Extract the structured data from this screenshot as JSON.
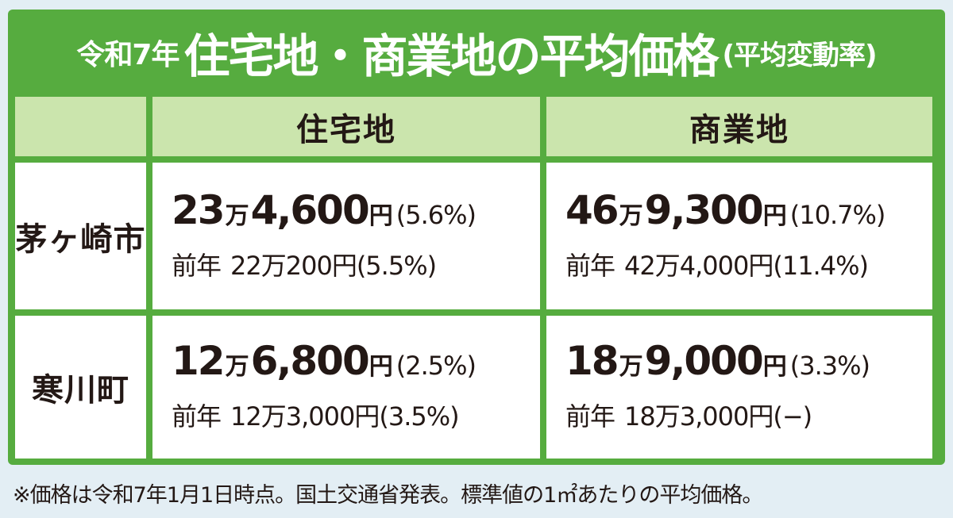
{
  "title": {
    "prefix": "令和7年",
    "main": "住宅地・商業地の平均価格",
    "suffix": "(平均変動率)"
  },
  "table": {
    "columns": [
      "住宅地",
      "商業地"
    ],
    "rows": [
      {
        "city": "茅ヶ崎市",
        "residential": {
          "big1": "23",
          "man": "万",
          "big2": "4,600",
          "yen": "円",
          "pct": "(5.6%)",
          "prev_label": "前年",
          "prev_value": "22万200円(5.5%)"
        },
        "commercial": {
          "big1": "46",
          "man": "万",
          "big2": "9,300",
          "yen": "円",
          "pct": "(10.7%)",
          "prev_label": "前年",
          "prev_value": "42万4,000円(11.4%)"
        }
      },
      {
        "city": "寒川町",
        "residential": {
          "big1": "12",
          "man": "万",
          "big2": "6,800",
          "yen": "円",
          "pct": "(2.5%)",
          "prev_label": "前年",
          "prev_value": "12万3,000円(3.5%)"
        },
        "commercial": {
          "big1": "18",
          "man": "万",
          "big2": "9,000",
          "yen": "円",
          "pct": "(3.3%)",
          "prev_label": "前年",
          "prev_value": "18万3,000円(−)"
        }
      }
    ]
  },
  "footnote": "※価格は令和7年1月1日時点。国土交通省発表。標準値の1㎡あたりの平均価格。",
  "colors": {
    "frame_green": "#56ac3f",
    "header_green": "#cbe5ad",
    "page_bg": "#e3eef4",
    "text": "#231815"
  }
}
